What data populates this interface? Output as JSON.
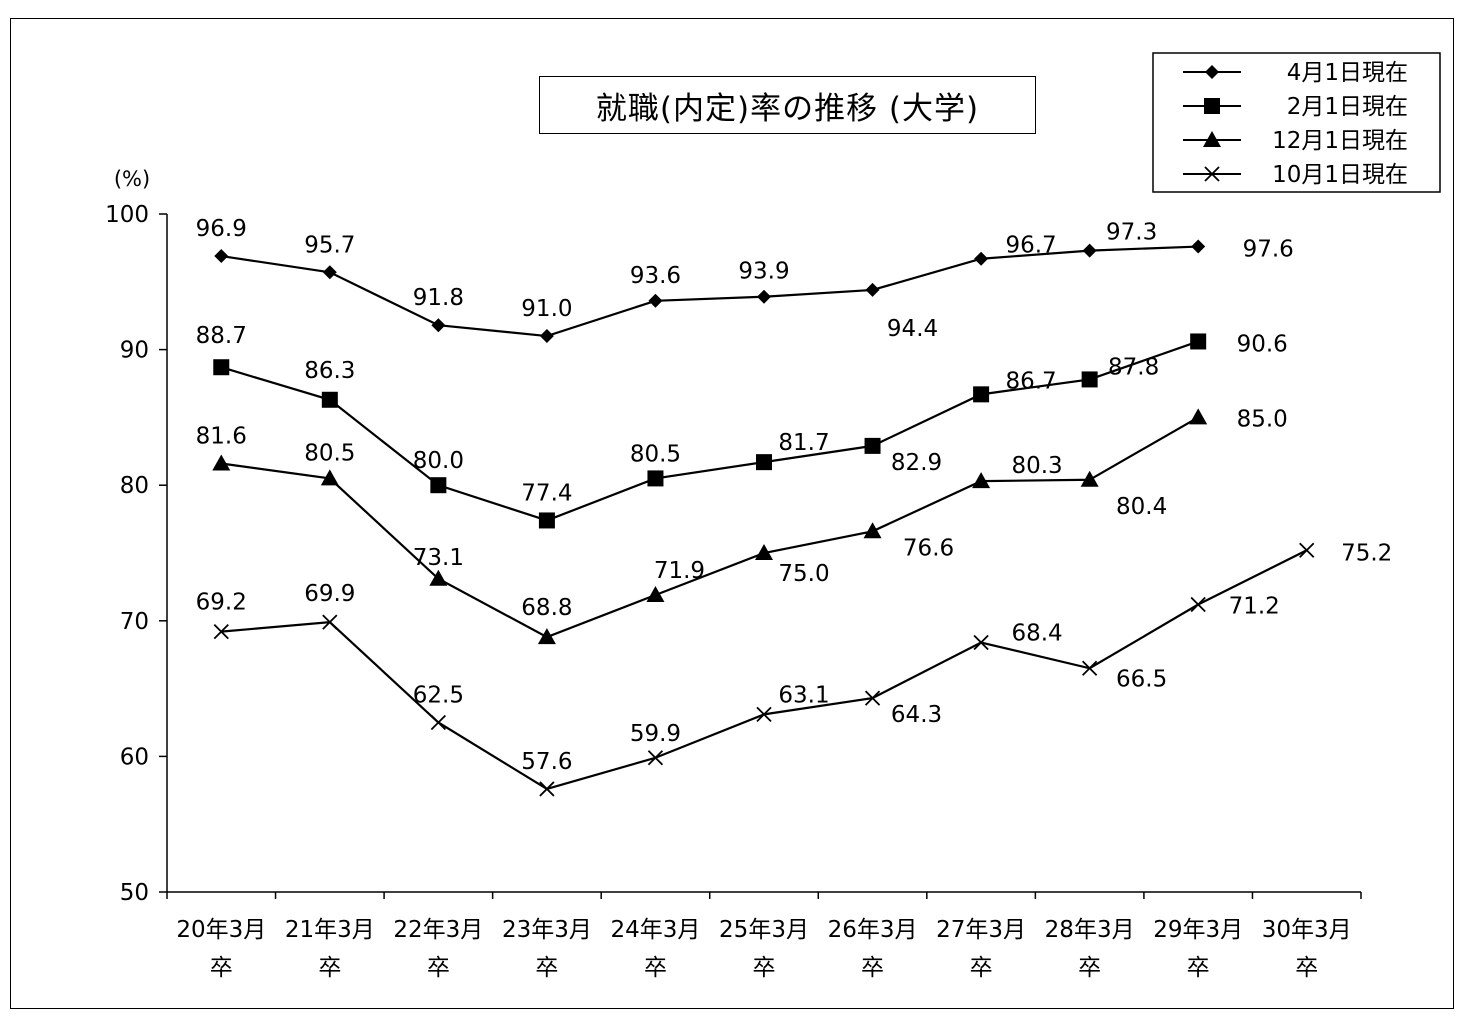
{
  "chart_data": {
    "type": "line",
    "title": "就職(内定)率の推移 (大学)",
    "ylabel": "(%)",
    "xlabel": "",
    "ylim": [
      50,
      100
    ],
    "yticks": [
      "100",
      "90",
      "80",
      "70",
      "60",
      "50"
    ],
    "grid": false,
    "legend_position": "top-right",
    "categories": [
      [
        "20年3月",
        "卒"
      ],
      [
        "21年3月",
        "卒"
      ],
      [
        "22年3月",
        "卒"
      ],
      [
        "23年3月",
        "卒"
      ],
      [
        "24年3月",
        "卒"
      ],
      [
        "25年3月",
        "卒"
      ],
      [
        "26年3月",
        "卒"
      ],
      [
        "27年3月",
        "卒"
      ],
      [
        "28年3月",
        "卒"
      ],
      [
        "29年3月",
        "卒"
      ],
      [
        "30年3月",
        "卒"
      ]
    ],
    "series": [
      {
        "name": "4月1日現在",
        "marker": "diamond",
        "values": [
          96.9,
          95.7,
          91.8,
          91.0,
          93.6,
          93.9,
          94.4,
          96.7,
          97.3,
          97.6,
          null
        ]
      },
      {
        "name": "2月1日現在",
        "marker": "square",
        "values": [
          88.7,
          86.3,
          80.0,
          77.4,
          80.5,
          81.7,
          82.9,
          86.7,
          87.8,
          90.6,
          null
        ]
      },
      {
        "name": "12月1日現在",
        "marker": "triangle",
        "values": [
          81.6,
          80.5,
          73.1,
          68.8,
          71.9,
          75.0,
          76.6,
          80.3,
          80.4,
          85.0,
          null
        ]
      },
      {
        "name": "10月1日現在",
        "marker": "x",
        "values": [
          69.2,
          69.9,
          62.5,
          57.6,
          59.9,
          63.1,
          64.3,
          68.4,
          66.5,
          71.2,
          75.2
        ]
      }
    ],
    "labels": [
      [
        "96.9",
        "95.7",
        "91.8",
        "91.0",
        "93.6",
        "93.9",
        "94.4",
        "96.7",
        "97.3",
        "97.6",
        null
      ],
      [
        "88.7",
        "86.3",
        "80.0",
        "77.4",
        "80.5",
        "81.7",
        "82.9",
        "86.7",
        "87.8",
        "90.6",
        null
      ],
      [
        "81.6",
        "80.5",
        "73.1",
        "68.8",
        "71.9",
        "75.0",
        "76.6",
        "80.3",
        "80.4",
        "85.0",
        null
      ],
      [
        "69.2",
        "69.9",
        "62.5",
        "57.6",
        "59.9",
        "63.1",
        "64.3",
        "68.4",
        "66.5",
        "71.2",
        "75.2"
      ]
    ],
    "line_color": "#000000"
  }
}
